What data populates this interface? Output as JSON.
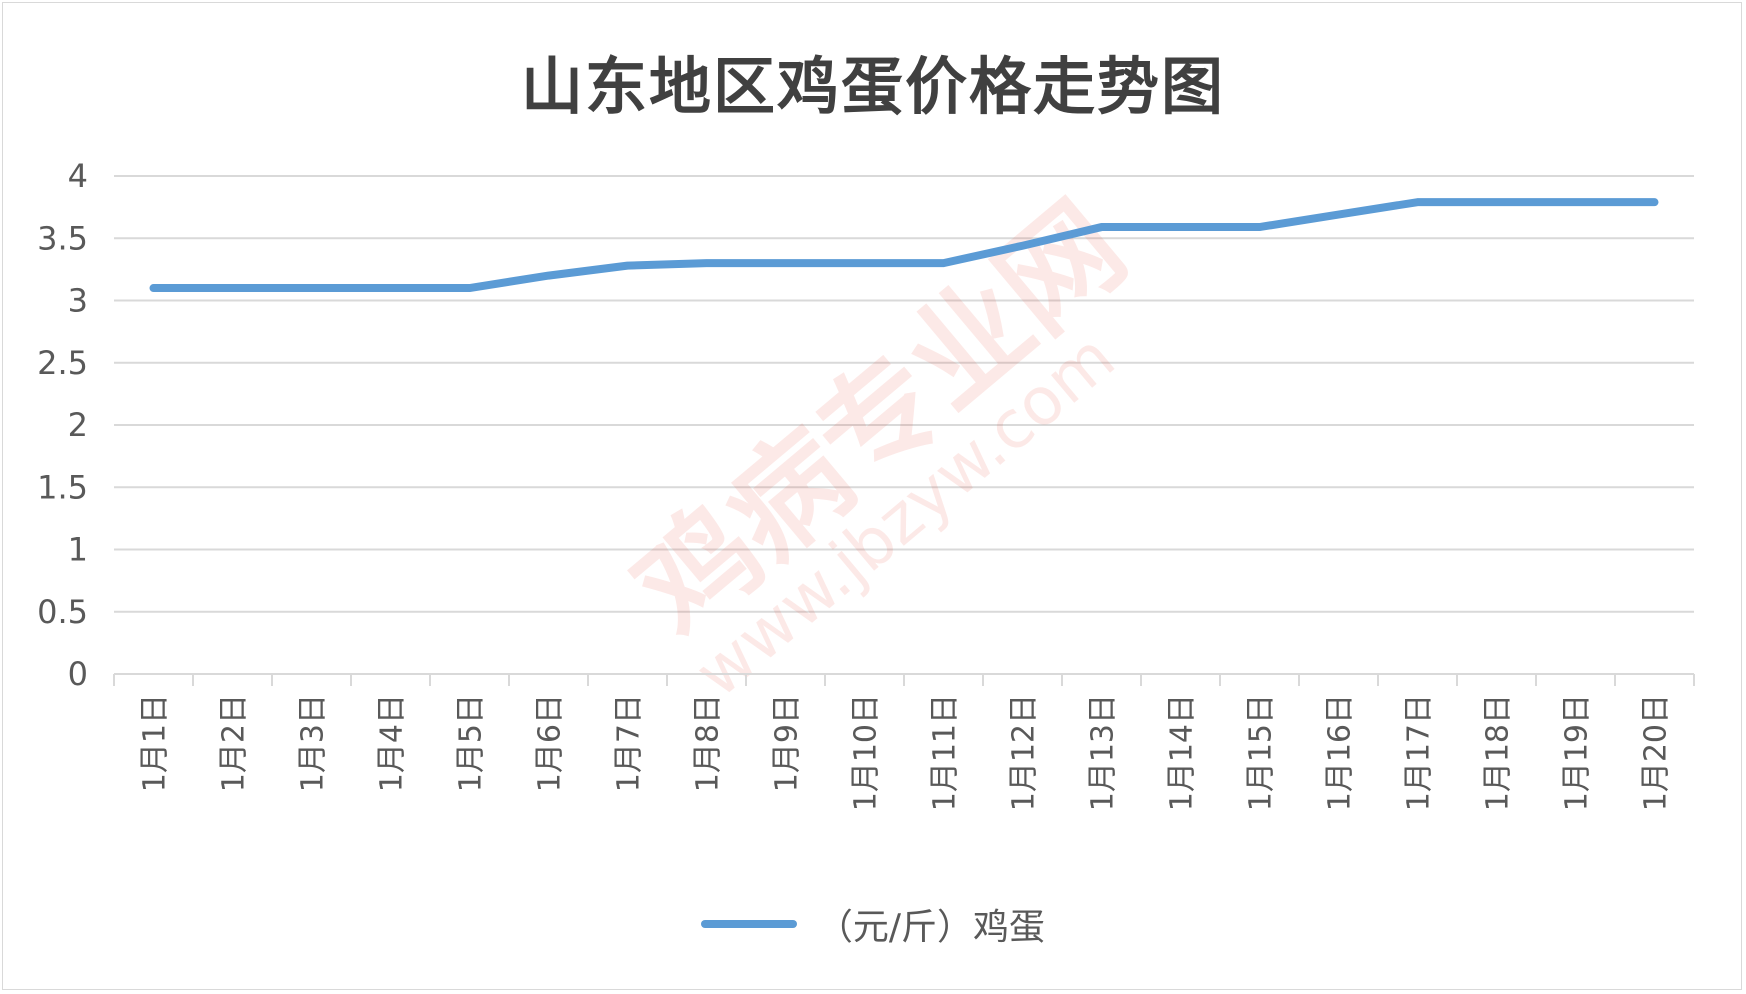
{
  "chart_data": {
    "type": "line",
    "title": "山东地区鸡蛋价格走势图",
    "categories": [
      "1月1日",
      "1月2日",
      "1月3日",
      "1月4日",
      "1月5日",
      "1月6日",
      "1月7日",
      "1月8日",
      "1月9日",
      "1月10日",
      "1月11日",
      "1月12日",
      "1月13日",
      "1月14日",
      "1月15日",
      "1月16日",
      "1月17日",
      "1月18日",
      "1月19日",
      "1月20日"
    ],
    "series": [
      {
        "name": "（元/斤）鸡蛋",
        "color": "#5b9bd5",
        "values": [
          3.1,
          3.1,
          3.1,
          3.1,
          3.1,
          3.2,
          3.28,
          3.3,
          3.3,
          3.3,
          3.3,
          3.44,
          3.59,
          3.59,
          3.59,
          3.69,
          3.79,
          3.79,
          3.79,
          3.79
        ]
      }
    ],
    "yticks": [
      "0",
      "0.5",
      "1",
      "1.5",
      "2",
      "2.5",
      "3",
      "3.5",
      "4"
    ],
    "ylim": [
      0,
      4
    ],
    "xlabel": "",
    "ylabel": "",
    "grid": true,
    "legend_position": "bottom"
  },
  "watermark": {
    "text": "鸡病专业网",
    "url": "www.jbzyw.com"
  }
}
